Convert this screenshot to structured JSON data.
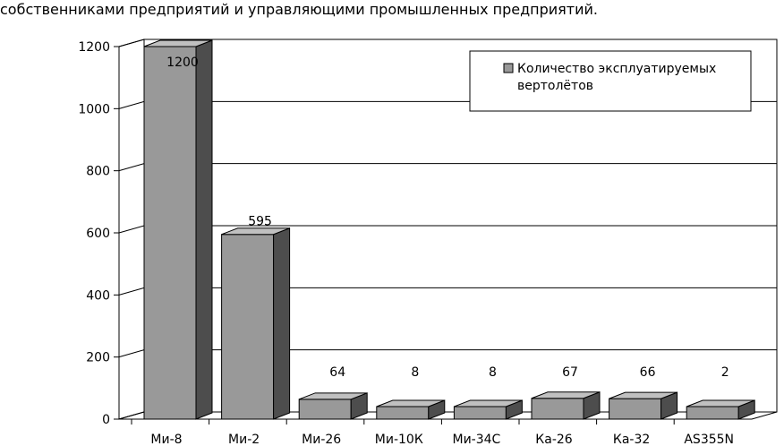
{
  "caption": "собственниками предприятий и управляющими промышленных предприятий.",
  "chart_data": {
    "type": "bar",
    "style": "3d",
    "categories": [
      "Ми-8",
      "Ми-2",
      "Ми-26",
      "Ми-10К",
      "Ми-34С",
      "Ка-26",
      "Ка-32",
      "AS355N"
    ],
    "series": [
      {
        "name": "Количество эксплуатируемых вертолётов",
        "values": [
          1200,
          595,
          64,
          8,
          8,
          67,
          66,
          2
        ]
      }
    ],
    "data_labels": [
      "1200",
      "595",
      "64",
      "8",
      "8",
      "67",
      "66",
      "2"
    ],
    "yticks": [
      "0",
      "200",
      "400",
      "600",
      "800",
      "1000",
      "1200"
    ],
    "ylim": [
      0,
      1200
    ],
    "grid": true,
    "legend_position": "top-right",
    "legend_lines": [
      "Количество эксплуатируемых",
      "вертолётов"
    ],
    "colors": {
      "bar_front": "#999999",
      "bar_side": "#4d4d4d",
      "bar_top": "#c0c0c0",
      "grid": "#000000"
    }
  }
}
